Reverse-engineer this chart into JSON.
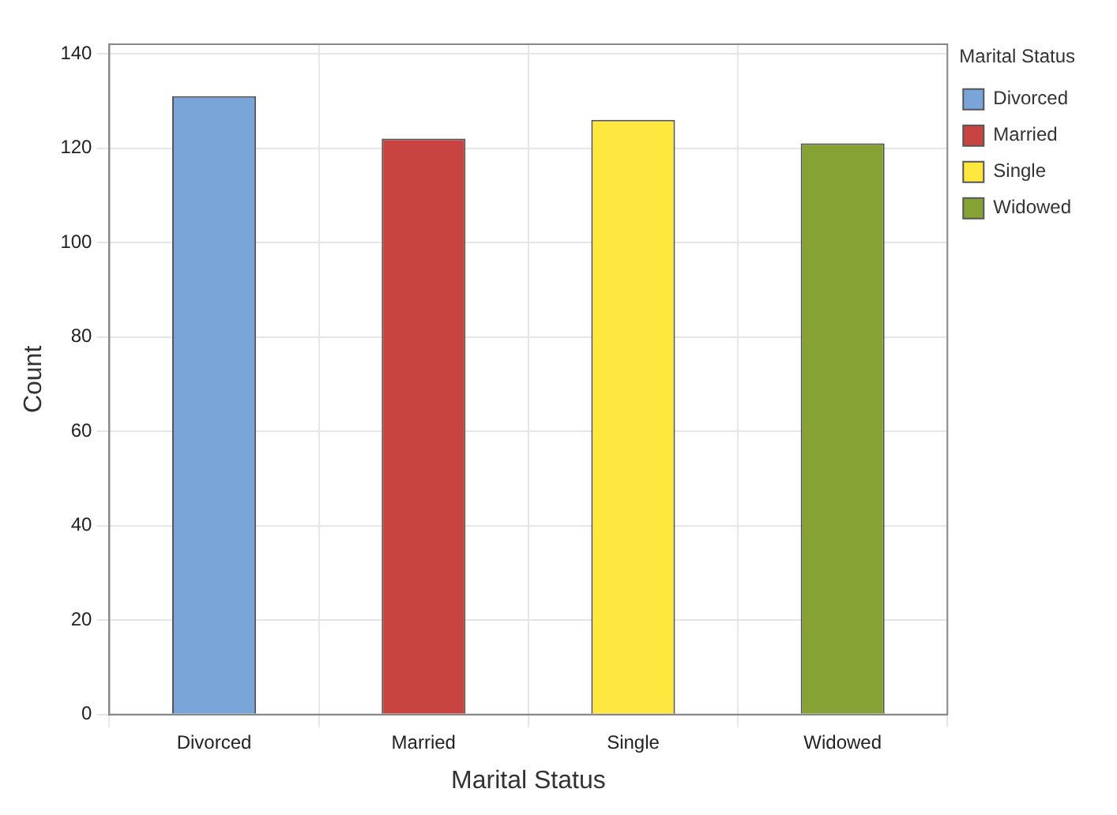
{
  "chart_data": {
    "type": "bar",
    "xlabel": "Marital Status",
    "ylabel": "Count",
    "legend_title": "Marital Status",
    "categories": [
      "Divorced",
      "Married",
      "Single",
      "Widowed"
    ],
    "series": [
      {
        "name": "Divorced",
        "color": "#7aa5d8",
        "values": [
          131,
          null,
          null,
          null
        ]
      },
      {
        "name": "Married",
        "color": "#c84441",
        "values": [
          null,
          122,
          null,
          null
        ]
      },
      {
        "name": "Single",
        "color": "#fee73e",
        "values": [
          null,
          null,
          126,
          null
        ]
      },
      {
        "name": "Widowed",
        "color": "#86a234",
        "values": [
          null,
          null,
          null,
          121
        ]
      }
    ],
    "ylim": [
      0,
      142
    ],
    "yticks": [
      0,
      20,
      40,
      60,
      80,
      100,
      120,
      140
    ],
    "grid": true,
    "legend": "top right"
  }
}
